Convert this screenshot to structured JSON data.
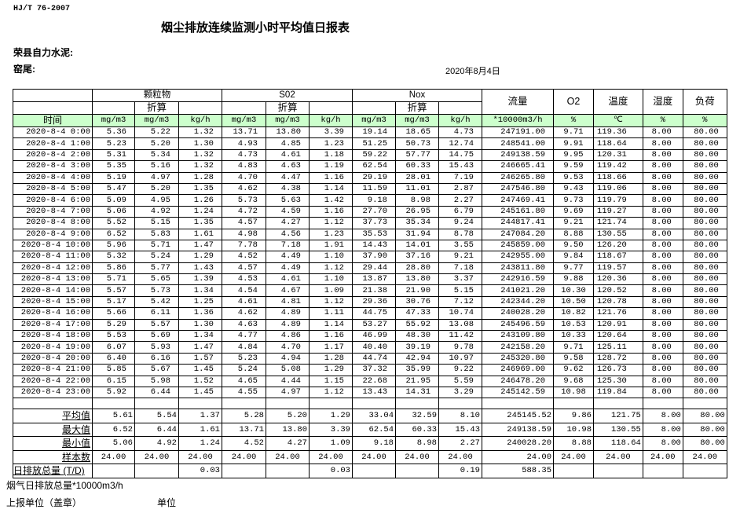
{
  "header": {
    "standard": "HJ/T  76-2007",
    "title": "烟尘排放连续监测小时平均值日报表",
    "company": "荣县自力水泥:",
    "kiln": "窑尾:",
    "date": "2020年8月4日"
  },
  "table": {
    "groups": {
      "particulate": "颗粒物",
      "so2": "S02",
      "nox": "Nox",
      "flow": "流量",
      "o2": "O2",
      "temp": "温度",
      "humidity": "湿度",
      "load": "负荷"
    },
    "converted": "折算",
    "time_label": "时间",
    "units": [
      "mg/m3",
      "mg/m3",
      "kg/h",
      "mg/m3",
      "mg/m3",
      "kg/h",
      "mg/m3",
      "mg/m3",
      "kg/h",
      "*10000m3/h",
      "%",
      "℃",
      "%",
      "%"
    ],
    "rows": [
      [
        "2020-8-4 0:00",
        "5.36",
        "5.22",
        "1.32",
        "13.71",
        "13.80",
        "3.39",
        "19.14",
        "18.65",
        "4.73",
        "247191.00",
        "9.71",
        "119.36",
        "8.00",
        "80.00"
      ],
      [
        "2020-8-4 1:00",
        "5.23",
        "5.20",
        "1.30",
        "4.93",
        "4.85",
        "1.23",
        "51.25",
        "50.73",
        "12.74",
        "248541.00",
        "9.91",
        "118.64",
        "8.00",
        "80.00"
      ],
      [
        "2020-8-4 2:00",
        "5.31",
        "5.34",
        "1.32",
        "4.73",
        "4.61",
        "1.18",
        "59.22",
        "57.77",
        "14.75",
        "249138.59",
        "9.95",
        "120.31",
        "8.00",
        "80.00"
      ],
      [
        "2020-8-4 3:00",
        "5.35",
        "5.16",
        "1.32",
        "4.83",
        "4.63",
        "1.19",
        "62.54",
        "60.33",
        "15.43",
        "246665.41",
        "9.59",
        "119.42",
        "8.00",
        "80.00"
      ],
      [
        "2020-8-4 4:00",
        "5.19",
        "4.97",
        "1.28",
        "4.70",
        "4.47",
        "1.16",
        "29.19",
        "28.01",
        "7.19",
        "246265.80",
        "9.53",
        "118.66",
        "8.00",
        "80.00"
      ],
      [
        "2020-8-4 5:00",
        "5.47",
        "5.20",
        "1.35",
        "4.62",
        "4.38",
        "1.14",
        "11.59",
        "11.01",
        "2.87",
        "247546.80",
        "9.43",
        "119.06",
        "8.00",
        "80.00"
      ],
      [
        "2020-8-4 6:00",
        "5.09",
        "4.95",
        "1.26",
        "5.73",
        "5.63",
        "1.42",
        "9.18",
        "8.98",
        "2.27",
        "247469.41",
        "9.73",
        "119.79",
        "8.00",
        "80.00"
      ],
      [
        "2020-8-4 7:00",
        "5.06",
        "4.92",
        "1.24",
        "4.72",
        "4.59",
        "1.16",
        "27.70",
        "26.95",
        "6.79",
        "245161.80",
        "9.69",
        "119.27",
        "8.00",
        "80.00"
      ],
      [
        "2020-8-4 8:00",
        "5.52",
        "5.15",
        "1.35",
        "4.57",
        "4.27",
        "1.12",
        "37.73",
        "35.34",
        "9.24",
        "244817.41",
        "9.21",
        "121.74",
        "8.00",
        "80.00"
      ],
      [
        "2020-8-4 9:00",
        "6.52",
        "5.83",
        "1.61",
        "4.98",
        "4.56",
        "1.23",
        "35.53",
        "31.94",
        "8.78",
        "247084.20",
        "8.88",
        "130.55",
        "8.00",
        "80.00"
      ],
      [
        "2020-8-4 10:00",
        "5.96",
        "5.71",
        "1.47",
        "7.78",
        "7.18",
        "1.91",
        "14.43",
        "14.01",
        "3.55",
        "245859.00",
        "9.50",
        "126.20",
        "8.00",
        "80.00"
      ],
      [
        "2020-8-4 11:00",
        "5.32",
        "5.24",
        "1.29",
        "4.52",
        "4.49",
        "1.10",
        "37.90",
        "37.16",
        "9.21",
        "242955.00",
        "9.84",
        "118.67",
        "8.00",
        "80.00"
      ],
      [
        "2020-8-4 12:00",
        "5.86",
        "5.77",
        "1.43",
        "4.57",
        "4.49",
        "1.12",
        "29.44",
        "28.80",
        "7.18",
        "243811.80",
        "9.77",
        "119.57",
        "8.00",
        "80.00"
      ],
      [
        "2020-8-4 13:00",
        "5.71",
        "5.65",
        "1.39",
        "4.53",
        "4.61",
        "1.10",
        "13.87",
        "13.80",
        "3.37",
        "242916.59",
        "9.88",
        "120.36",
        "8.00",
        "80.00"
      ],
      [
        "2020-8-4 14:00",
        "5.57",
        "5.73",
        "1.34",
        "4.54",
        "4.67",
        "1.09",
        "21.38",
        "21.90",
        "5.15",
        "241021.20",
        "10.30",
        "120.52",
        "8.00",
        "80.00"
      ],
      [
        "2020-8-4 15:00",
        "5.17",
        "5.42",
        "1.25",
        "4.61",
        "4.81",
        "1.12",
        "29.36",
        "30.76",
        "7.12",
        "242344.20",
        "10.50",
        "120.78",
        "8.00",
        "80.00"
      ],
      [
        "2020-8-4 16:00",
        "5.66",
        "6.11",
        "1.36",
        "4.62",
        "4.89",
        "1.11",
        "44.75",
        "47.33",
        "10.74",
        "240028.20",
        "10.82",
        "121.76",
        "8.00",
        "80.00"
      ],
      [
        "2020-8-4 17:00",
        "5.29",
        "5.57",
        "1.30",
        "4.63",
        "4.89",
        "1.14",
        "53.27",
        "55.92",
        "13.08",
        "245496.59",
        "10.53",
        "120.91",
        "8.00",
        "80.00"
      ],
      [
        "2020-8-4 18:00",
        "5.53",
        "5.69",
        "1.34",
        "4.77",
        "4.86",
        "1.16",
        "46.99",
        "48.30",
        "11.42",
        "243109.80",
        "10.33",
        "120.64",
        "8.00",
        "80.00"
      ],
      [
        "2020-8-4 19:00",
        "6.07",
        "5.93",
        "1.47",
        "4.84",
        "4.70",
        "1.17",
        "40.40",
        "39.19",
        "9.78",
        "242158.20",
        "9.71",
        "125.11",
        "8.00",
        "80.00"
      ],
      [
        "2020-8-4 20:00",
        "6.40",
        "6.16",
        "1.57",
        "5.23",
        "4.94",
        "1.28",
        "44.74",
        "42.94",
        "10.97",
        "245320.80",
        "9.58",
        "128.72",
        "8.00",
        "80.00"
      ],
      [
        "2020-8-4 21:00",
        "5.85",
        "5.67",
        "1.45",
        "5.24",
        "5.08",
        "1.29",
        "37.32",
        "35.99",
        "9.22",
        "246969.00",
        "9.62",
        "126.73",
        "8.00",
        "80.00"
      ],
      [
        "2020-8-4 22:00",
        "6.15",
        "5.98",
        "1.52",
        "4.65",
        "4.44",
        "1.15",
        "22.68",
        "21.95",
        "5.59",
        "246478.20",
        "9.68",
        "125.30",
        "8.00",
        "80.00"
      ],
      [
        "2020-8-4 23:00",
        "5.92",
        "6.44",
        "1.45",
        "4.55",
        "4.97",
        "1.12",
        "13.43",
        "14.31",
        "3.29",
        "245142.59",
        "10.98",
        "119.84",
        "8.00",
        "80.00"
      ]
    ],
    "summary": [
      {
        "label": "平均值",
        "values": [
          "5.61",
          "5.54",
          "1.37",
          "5.28",
          "5.20",
          "1.29",
          "33.04",
          "32.59",
          "8.10",
          "245145.52",
          "9.86",
          "121.75",
          "8.00",
          "80.00"
        ]
      },
      {
        "label": "最大值",
        "values": [
          "6.52",
          "6.44",
          "1.61",
          "13.71",
          "13.80",
          "3.39",
          "62.54",
          "60.33",
          "15.43",
          "249138.59",
          "10.98",
          "130.55",
          "8.00",
          "80.00"
        ]
      },
      {
        "label": "最小值",
        "values": [
          "5.06",
          "4.92",
          "1.24",
          "4.52",
          "4.27",
          "1.09",
          "9.18",
          "8.98",
          "2.27",
          "240028.20",
          "8.88",
          "118.64",
          "8.00",
          "80.00"
        ]
      },
      {
        "label": "样本数",
        "values": [
          "24.00",
          "24.00",
          "24.00",
          "24.00",
          "24.00",
          "24.00",
          "24.00",
          "24.00",
          "24.00",
          "24.00",
          "24.00",
          "24.00",
          "24.00",
          "24.00"
        ]
      }
    ],
    "daily_total": {
      "label": "日排放总量 (T/D)",
      "values": [
        "",
        "",
        "0.03",
        "",
        "",
        "0.03",
        "",
        "",
        "0.19",
        "588.35",
        "",
        "",
        "",
        ""
      ]
    }
  },
  "footer": {
    "flue_gas_total": "烟气日排放总量*10000m3/h",
    "reporting_unit": "上报单位（盖章）",
    "unit": "单位"
  },
  "colors": {
    "unit_row_bg": "#ccffcc"
  }
}
